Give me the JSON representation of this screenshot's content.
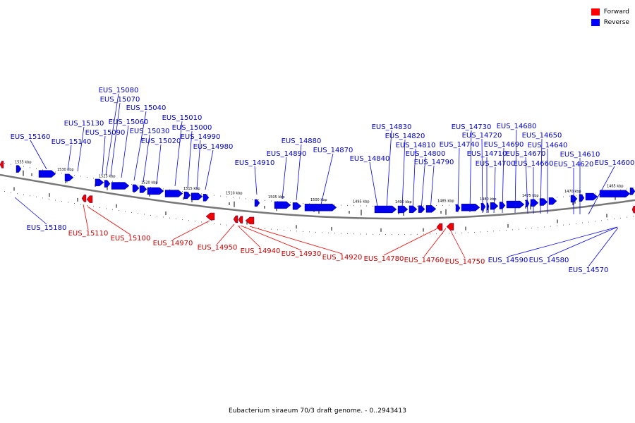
{
  "caption": "Eubacterium siraeum 70/3 draft genome. - 0..2943413",
  "legend": [
    {
      "label": "Forward",
      "color": "#ff0000"
    },
    {
      "label": "Reverse",
      "color": "#0000ff"
    }
  ],
  "colors": {
    "forward": "#ee0000",
    "reverse": "#0000ee",
    "forward_label": "#cc0000",
    "reverse_label": "#0000cc",
    "backbone": "#777777"
  },
  "scale": {
    "unit": "kbp",
    "ticks_kbp": [
      1535,
      1530,
      1525,
      1520,
      1515,
      1510,
      1505,
      1500,
      1495,
      1490,
      1485,
      1480,
      1475,
      1470,
      1465
    ],
    "labels": [
      "1535 kbp",
      "1530 kbp",
      "1525 kbp",
      "1520 kbp",
      "1515 kbp",
      "1510 kbp",
      "1505 kbp",
      "1500 kbp",
      "1495 kbp",
      "1490 kbp",
      "1485 kbp",
      "1480 kbp",
      "1475 kbp",
      "1470 kbp",
      "1465 kbp"
    ]
  },
  "reverse_genes": [
    "EUS_15160",
    "EUS_15140",
    "EUS_15130",
    "EUS_15090",
    "EUS_15080",
    "EUS_15070",
    "EUS_15060",
    "EUS_15040",
    "EUS_15030",
    "EUS_15020",
    "EUS_15010",
    "EUS_15000",
    "EUS_14990",
    "EUS_14980",
    "EUS_14910",
    "EUS_14890",
    "EUS_14880",
    "EUS_14870",
    "EUS_14840",
    "EUS_14830",
    "EUS_14820",
    "EUS_14810",
    "EUS_14800",
    "EUS_14790",
    "EUS_14740",
    "EUS_14730",
    "EUS_14720",
    "EUS_14710",
    "EUS_14700",
    "EUS_14690",
    "EUS_14680",
    "EUS_14670",
    "EUS_14660",
    "EUS_14650",
    "EUS_14640",
    "EUS_14620",
    "EUS_14610",
    "EUS_14600",
    "EUS_15180",
    "EUS_14590",
    "EUS_14580",
    "EUS_14570"
  ],
  "forward_genes": [
    "EUS_15110",
    "EUS_15100",
    "EUS_14970",
    "EUS_14950",
    "EUS_14940",
    "EUS_14930",
    "EUS_14920",
    "EUS_14780",
    "EUS_14760",
    "EUS_14750"
  ]
}
